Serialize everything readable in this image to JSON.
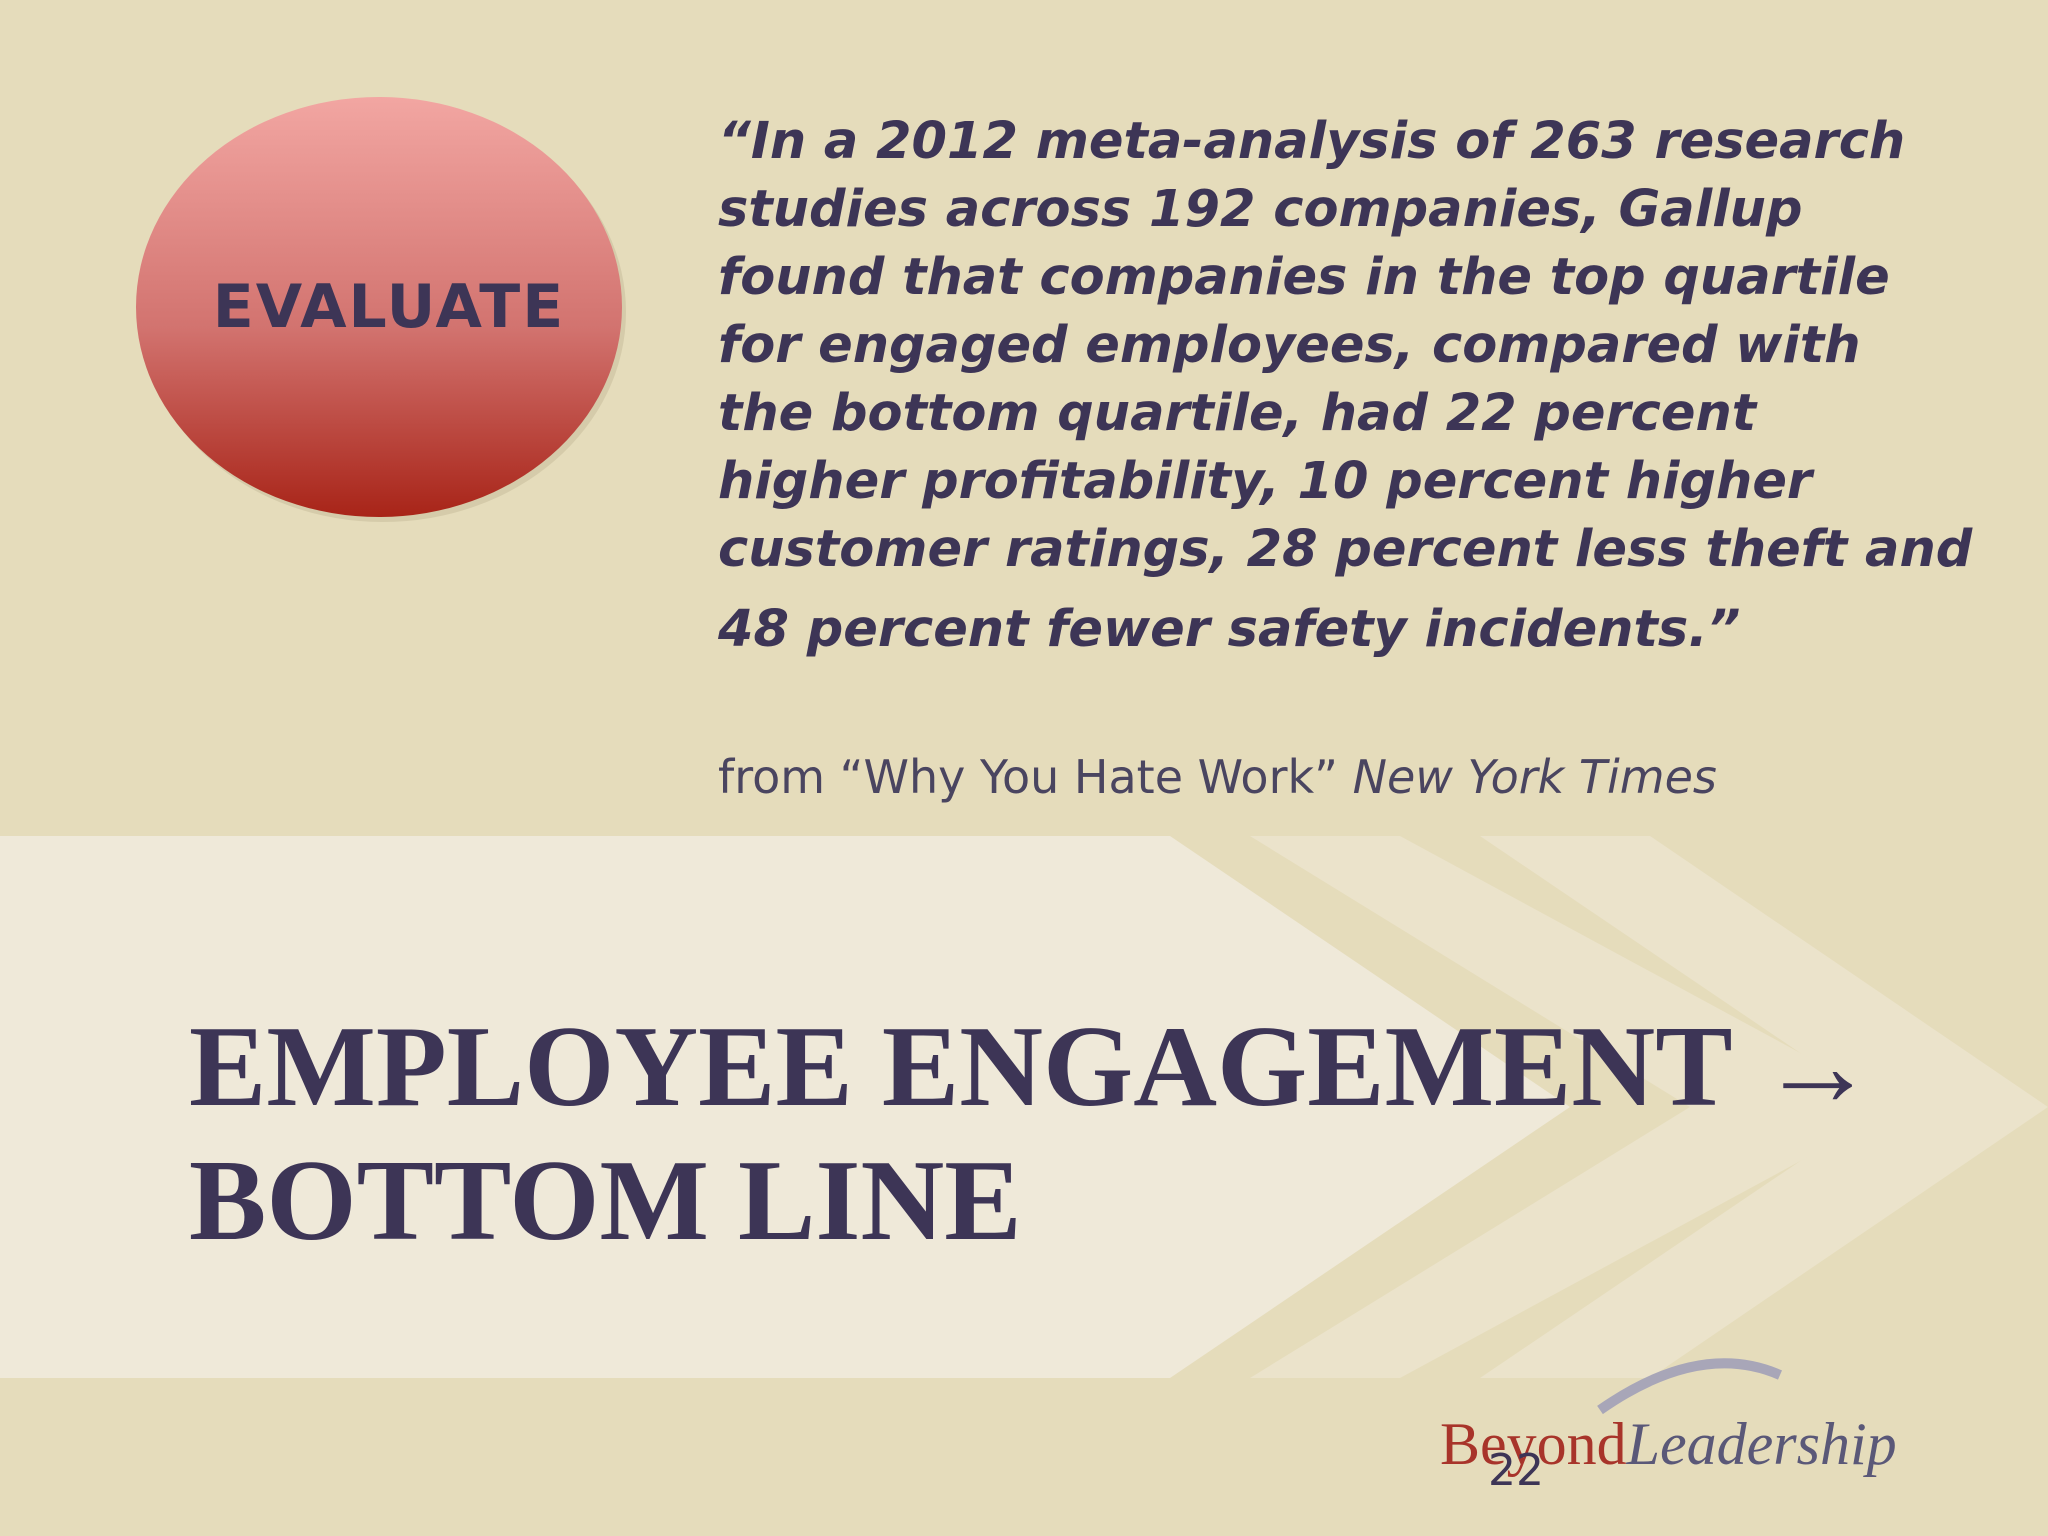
{
  "badge": {
    "label": "EVALUATE"
  },
  "quote": {
    "lines": [
      "“In a 2012 meta-analysis of 263 research",
      "studies across 192 companies, Gallup",
      "found that companies in the top quartile",
      "for engaged employees, compared with",
      "the bottom quartile, had 22 percent",
      "higher profitability, 10 percent higher",
      "customer ratings, 28 percent less theft and",
      "48 percent fewer safety incidents.”"
    ],
    "source": {
      "prefix": "from “Why You Hate Work”",
      "publication": "New York Times"
    }
  },
  "title": {
    "lines": [
      "EMPLOYEE ENGAGEMENT →",
      "BOTTOM LINE"
    ]
  },
  "footer": {
    "logo": {
      "first": "Beyond",
      "second": "Leadership"
    },
    "page_number": "22"
  }
}
